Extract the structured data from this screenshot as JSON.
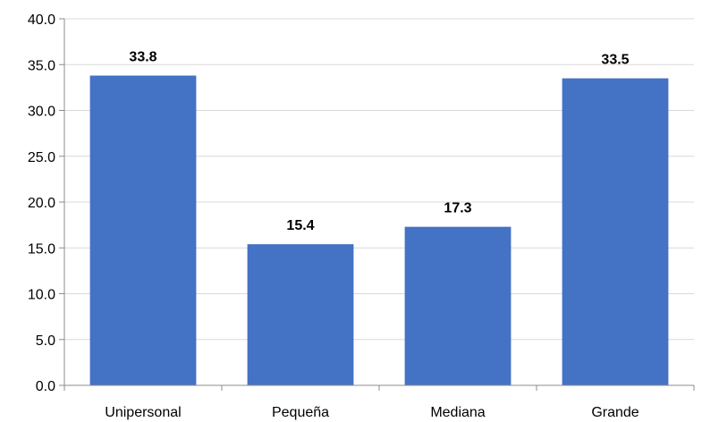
{
  "chart_data": {
    "type": "bar",
    "categories": [
      "Unipersonal",
      "Pequeña",
      "Mediana",
      "Grande"
    ],
    "values": [
      33.8,
      15.4,
      17.3,
      33.5
    ],
    "data_labels": [
      "33.8",
      "15.4",
      "17.3",
      "33.5"
    ],
    "title": "",
    "xlabel": "",
    "ylabel": "",
    "ylim": [
      0,
      40
    ],
    "yticks": [
      "0.0",
      "5.0",
      "10.0",
      "15.0",
      "20.0",
      "25.0",
      "30.0",
      "35.0",
      "40.0"
    ],
    "grid": true,
    "bar_color": "#4472c4"
  }
}
